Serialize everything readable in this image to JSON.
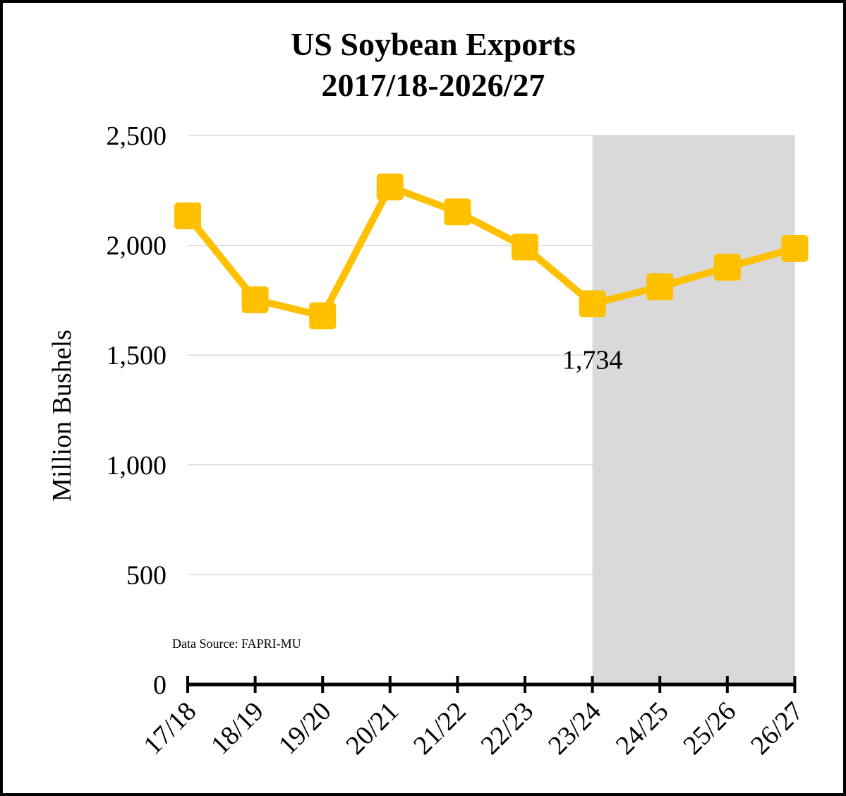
{
  "chart_data": {
    "type": "line",
    "title": [
      "US Soybean Exports",
      "2017/18-2026/27"
    ],
    "ylabel": "Million Bushels",
    "xlabel": "",
    "categories": [
      "17/18",
      "18/19",
      "19/20",
      "20/21",
      "21/22",
      "22/23",
      "23/24",
      "24/25",
      "25/26",
      "26/27"
    ],
    "series": [
      {
        "values": [
          2134,
          1752,
          1679,
          2266,
          2152,
          1992,
          1734,
          1811,
          1900,
          1986
        ],
        "color": "#FFC000"
      }
    ],
    "ylim": [
      0,
      2500
    ],
    "yticks": [
      0,
      500,
      1000,
      1500,
      2000,
      2500
    ],
    "ytick_labels": [
      "0",
      "500",
      "1,000",
      "1,500",
      "2,000",
      "2,500"
    ],
    "data_labels": [
      {
        "index": 6,
        "text": "1,734"
      }
    ],
    "projection_shading": {
      "from": "23/24",
      "to": "26/27",
      "color": "#D9D9D9"
    },
    "grid": true,
    "legend": "none",
    "source_note": "Data Source: FAPRI-MU"
  }
}
